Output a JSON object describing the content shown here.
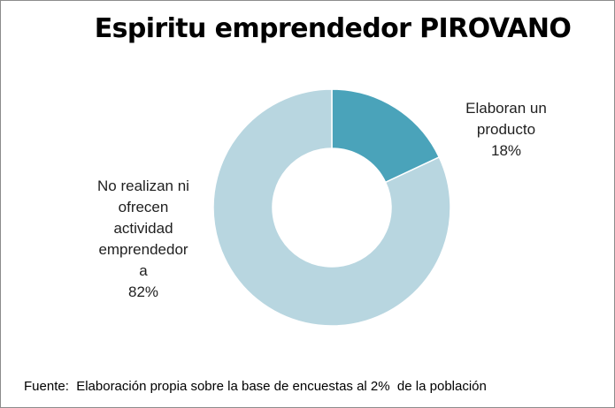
{
  "chart_data": {
    "type": "pie",
    "subtype": "doughnut",
    "title": "Espiritu emprendedor PIROVANO",
    "slices": [
      {
        "label": "Elaboran un\nproducto",
        "value": 18,
        "value_label": "18%",
        "color": "#4aa3ba"
      },
      {
        "label": "No realizan ni\nofrecen\nactividad\nemprendedor\na",
        "value": 82,
        "value_label": "82%",
        "color": "#b8d6e0"
      }
    ],
    "legend": "none"
  },
  "footer": {
    "source": "Fuente:  Elaboración propia sobre la base de encuestas al 2%  de la población"
  },
  "colors": {
    "border": "#8c8c8c",
    "slice_separator": "#ffffff"
  }
}
